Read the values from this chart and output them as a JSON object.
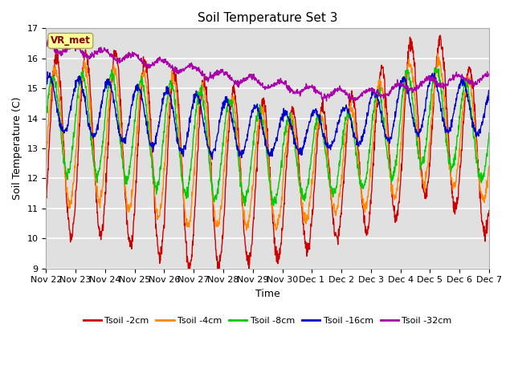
{
  "title": "Soil Temperature Set 3",
  "xlabel": "Time",
  "ylabel": "Soil Temperature (C)",
  "ylim": [
    9.0,
    17.0
  ],
  "yticks": [
    9.0,
    10.0,
    11.0,
    12.0,
    13.0,
    14.0,
    15.0,
    16.0,
    17.0
  ],
  "xtick_labels": [
    "Nov 22",
    "Nov 23",
    "Nov 24",
    "Nov 25",
    "Nov 26",
    "Nov 27",
    "Nov 28",
    "Nov 29",
    "Nov 30",
    "Dec 1",
    "Dec 2",
    "Dec 3",
    "Dec 4",
    "Dec 5",
    "Dec 6",
    "Dec 7"
  ],
  "colors": {
    "Tsoil -2cm": "#cc0000",
    "Tsoil -4cm": "#ff8800",
    "Tsoil -8cm": "#00cc00",
    "Tsoil -16cm": "#0000cc",
    "Tsoil -32cm": "#aa00aa"
  },
  "background_color": "#e0e0e0",
  "vr_met_box_color": "#ffff99",
  "vr_met_text_color": "#880000",
  "grid_color": "#ffffff"
}
